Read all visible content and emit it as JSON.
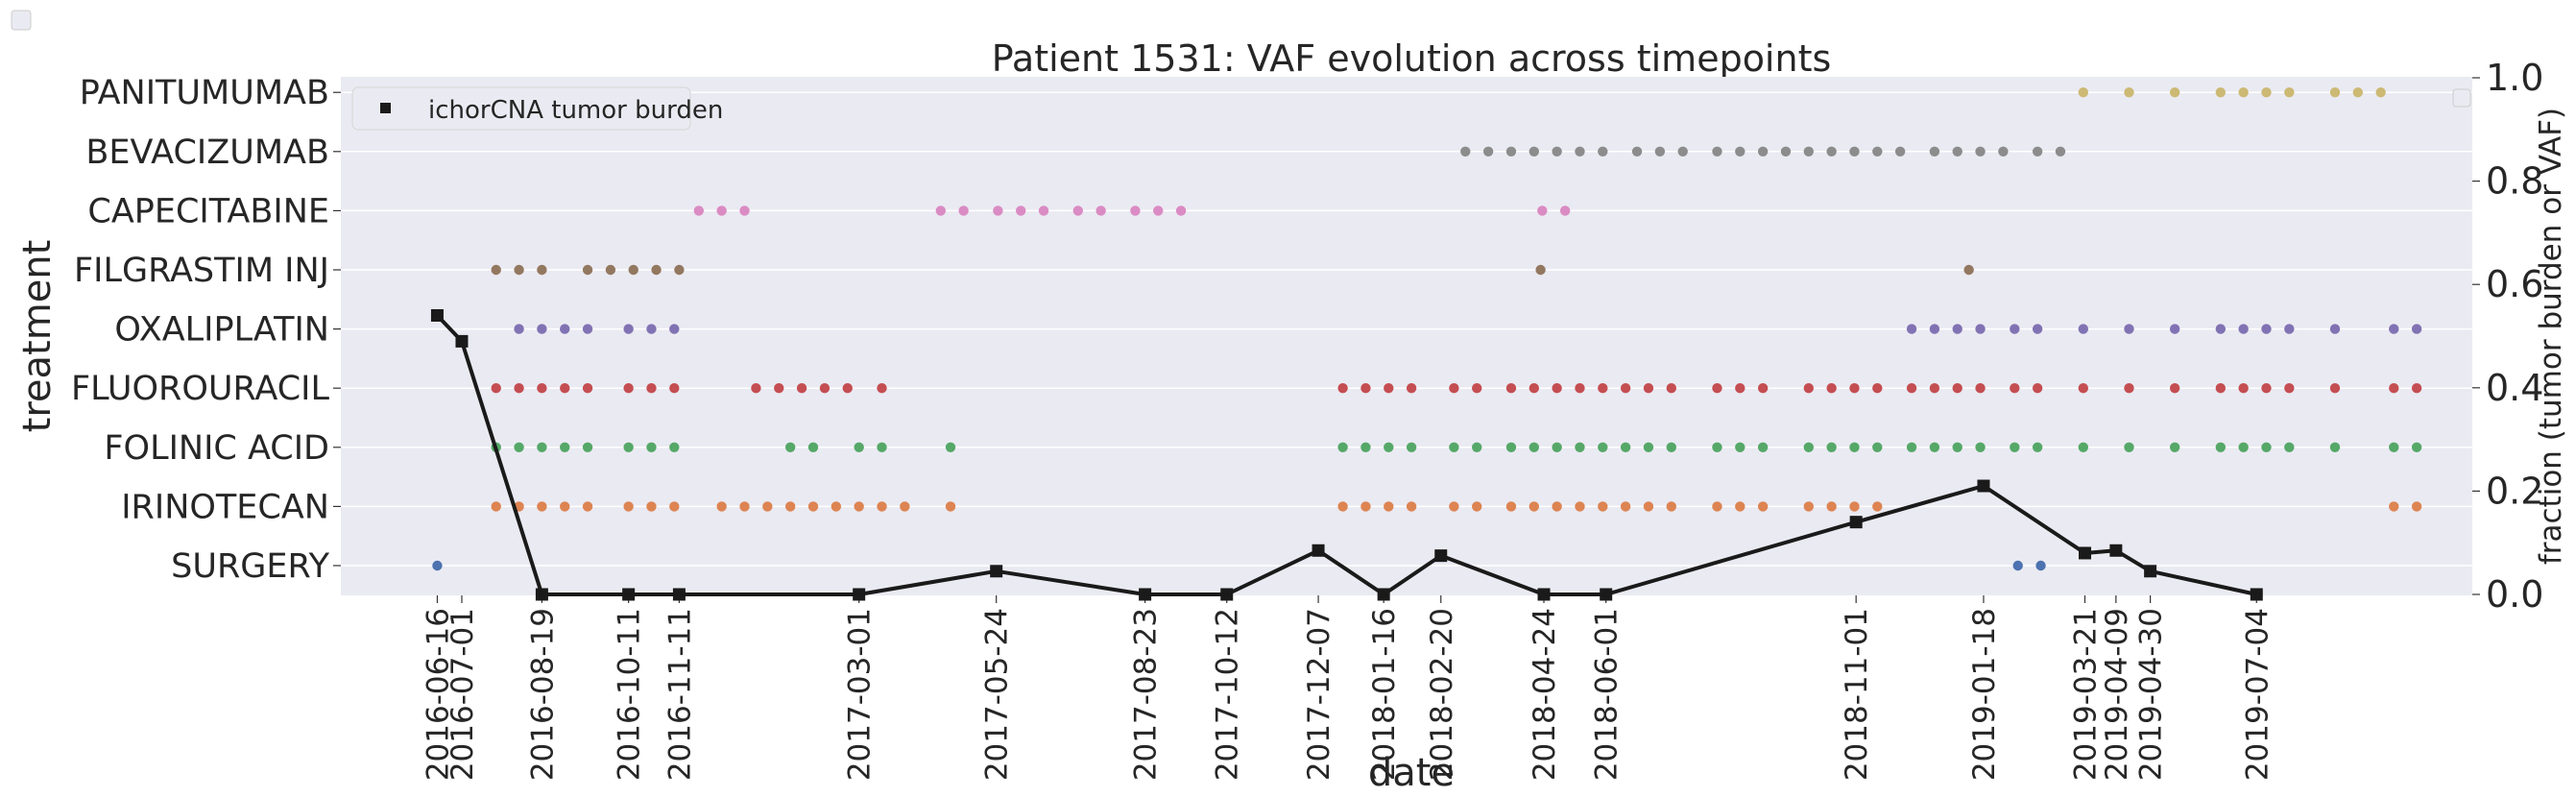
{
  "chart_data": {
    "type": "scatter",
    "title": "Patient 1531: VAF evolution across timepoints",
    "xlabel": "date",
    "ylabel": "treatment",
    "y2label": "fraction (tumor burden or VAF)",
    "y2lim": [
      0.0,
      1.0
    ],
    "y2ticks": [
      "0.0",
      "0.2",
      "0.4",
      "0.6",
      "0.8",
      "1.0"
    ],
    "grid": true,
    "legend": {
      "position": "top-left",
      "entries": [
        "ichorCNA tumor burden"
      ]
    },
    "xticks": [
      "2016-06-16",
      "2016-07-01",
      "2016-08-19",
      "2016-10-11",
      "2016-11-11",
      "2017-03-01",
      "2017-05-24",
      "2017-08-23",
      "2017-10-12",
      "2017-12-07",
      "2018-01-16",
      "2018-02-20",
      "2018-04-24",
      "2018-06-01",
      "2018-11-01",
      "2019-01-18",
      "2019-03-21",
      "2019-04-09",
      "2019-04-30",
      "2019-07-04"
    ],
    "categories": [
      "SURGERY",
      "IRINOTECAN",
      "FOLINIC ACID",
      "FLUOROURACIL",
      "OXALIPLATIN",
      "FILGRASTIM INJ",
      "CAPECITABINE",
      "BEVACIZUMAB",
      "PANITUMUMAB"
    ],
    "colors": {
      "SURGERY": "#4c72b0",
      "IRINOTECAN": "#dd8452",
      "FOLINIC ACID": "#55a868",
      "FLUOROURACIL": "#c44e52",
      "OXALIPLATIN": "#8172b3",
      "FILGRASTIM INJ": "#937860",
      "CAPECITABINE": "#da8bc3",
      "BEVACIZUMAB": "#8c8c8c",
      "PANITUMUMAB": "#ccb974",
      "burden": "#1a1a1a"
    },
    "treatment_dates": {
      "SURGERY": [
        "2016-06-16",
        "2019-02-08",
        "2019-02-22"
      ],
      "IRINOTECAN": [
        "2016-07-22",
        "2016-08-05",
        "2016-08-19",
        "2016-09-02",
        "2016-09-16",
        "2016-10-11",
        "2016-10-25",
        "2016-11-08",
        "2016-12-07",
        "2016-12-21",
        "2017-01-04",
        "2017-01-18",
        "2017-02-01",
        "2017-02-15",
        "2017-03-01",
        "2017-03-15",
        "2017-03-29",
        "2017-04-26",
        "2017-12-22",
        "2018-01-05",
        "2018-01-19",
        "2018-02-02",
        "2018-02-28",
        "2018-03-14",
        "2018-04-04",
        "2018-04-18",
        "2018-05-02",
        "2018-05-16",
        "2018-05-30",
        "2018-06-13",
        "2018-06-27",
        "2018-07-11",
        "2018-08-08",
        "2018-08-22",
        "2018-09-05",
        "2018-10-03",
        "2018-10-17",
        "2018-10-31",
        "2018-11-14",
        "2019-09-26",
        "2019-10-10"
      ],
      "FOLINIC ACID": [
        "2016-07-22",
        "2016-08-05",
        "2016-08-19",
        "2016-09-02",
        "2016-09-16",
        "2016-10-11",
        "2016-10-25",
        "2016-11-08",
        "2017-01-18",
        "2017-02-01",
        "2017-03-01",
        "2017-03-15",
        "2017-04-26",
        "2017-12-22",
        "2018-01-05",
        "2018-01-19",
        "2018-02-02",
        "2018-02-28",
        "2018-03-14",
        "2018-04-04",
        "2018-04-18",
        "2018-05-02",
        "2018-05-16",
        "2018-05-30",
        "2018-06-13",
        "2018-06-27",
        "2018-07-11",
        "2018-08-08",
        "2018-08-22",
        "2018-09-05",
        "2018-10-03",
        "2018-10-17",
        "2018-10-31",
        "2018-11-14",
        "2018-12-05",
        "2018-12-19",
        "2019-01-02",
        "2019-01-16",
        "2019-02-06",
        "2019-02-20",
        "2019-03-20",
        "2019-04-17",
        "2019-05-15",
        "2019-06-12",
        "2019-06-26",
        "2019-07-10",
        "2019-07-24",
        "2019-08-21",
        "2019-09-26",
        "2019-10-10"
      ],
      "FLUOROURACIL": [
        "2016-07-22",
        "2016-08-05",
        "2016-08-19",
        "2016-09-02",
        "2016-09-16",
        "2016-10-11",
        "2016-10-25",
        "2016-11-08",
        "2016-12-28",
        "2017-01-11",
        "2017-01-25",
        "2017-02-08",
        "2017-02-22",
        "2017-03-15",
        "2017-12-22",
        "2018-01-05",
        "2018-01-19",
        "2018-02-02",
        "2018-02-28",
        "2018-03-14",
        "2018-04-04",
        "2018-04-18",
        "2018-05-02",
        "2018-05-16",
        "2018-05-30",
        "2018-06-13",
        "2018-06-27",
        "2018-07-11",
        "2018-08-08",
        "2018-08-22",
        "2018-09-05",
        "2018-10-03",
        "2018-10-17",
        "2018-10-31",
        "2018-11-14",
        "2018-12-05",
        "2018-12-19",
        "2019-01-02",
        "2019-01-16",
        "2019-02-06",
        "2019-02-20",
        "2019-03-20",
        "2019-04-17",
        "2019-05-15",
        "2019-06-12",
        "2019-06-26",
        "2019-07-10",
        "2019-07-24",
        "2019-08-21",
        "2019-09-26",
        "2019-10-10"
      ],
      "OXALIPLATIN": [
        "2016-08-05",
        "2016-08-19",
        "2016-09-02",
        "2016-09-16",
        "2016-10-11",
        "2016-10-25",
        "2016-11-08",
        "2018-12-05",
        "2018-12-19",
        "2019-01-02",
        "2019-01-16",
        "2019-02-06",
        "2019-02-20",
        "2019-03-20",
        "2019-04-17",
        "2019-05-15",
        "2019-06-12",
        "2019-06-26",
        "2019-07-10",
        "2019-07-24",
        "2019-08-21",
        "2019-09-26",
        "2019-10-10"
      ],
      "FILGRASTIM INJ": [
        "2016-07-22",
        "2016-08-05",
        "2016-08-19",
        "2016-09-16",
        "2016-09-30",
        "2016-10-14",
        "2016-10-28",
        "2016-11-11",
        "2018-04-22",
        "2019-01-09"
      ],
      "CAPECITABINE": [
        "2016-11-23",
        "2016-12-07",
        "2016-12-21",
        "2017-04-20",
        "2017-05-04",
        "2017-05-25",
        "2017-06-08",
        "2017-06-22",
        "2017-07-13",
        "2017-07-27",
        "2017-08-17",
        "2017-08-31",
        "2017-09-14",
        "2018-04-23",
        "2018-05-07"
      ],
      "BEVACIZUMAB": [
        "2018-03-07",
        "2018-03-21",
        "2018-04-04",
        "2018-04-18",
        "2018-05-02",
        "2018-05-16",
        "2018-05-30",
        "2018-06-20",
        "2018-07-04",
        "2018-07-18",
        "2018-08-08",
        "2018-08-22",
        "2018-09-05",
        "2018-09-19",
        "2018-10-03",
        "2018-10-17",
        "2018-10-31",
        "2018-11-14",
        "2018-11-28",
        "2018-12-19",
        "2019-01-02",
        "2019-01-16",
        "2019-01-30",
        "2019-02-20",
        "2019-03-06"
      ],
      "PANITUMUMAB": [
        "2019-03-20",
        "2019-04-17",
        "2019-05-15",
        "2019-06-12",
        "2019-06-26",
        "2019-07-10",
        "2019-07-24",
        "2019-08-21",
        "2019-09-04",
        "2019-09-18"
      ]
    },
    "tumor_burden": {
      "name": "ichorCNA tumor burden",
      "x": [
        "2016-06-16",
        "2016-07-01",
        "2016-08-19",
        "2016-10-11",
        "2016-11-11",
        "2017-03-01",
        "2017-05-24",
        "2017-08-23",
        "2017-10-12",
        "2017-12-07",
        "2018-01-16",
        "2018-02-20",
        "2018-04-24",
        "2018-06-01",
        "2018-11-01",
        "2019-01-18",
        "2019-03-21",
        "2019-04-09",
        "2019-04-30",
        "2019-07-04"
      ],
      "y": [
        0.54,
        0.49,
        0.0,
        0.0,
        0.0,
        0.0,
        0.045,
        0.0,
        0.0,
        0.085,
        0.0,
        0.075,
        0.0,
        0.0,
        0.14,
        0.21,
        0.08,
        0.085,
        0.045,
        0.0
      ]
    }
  }
}
